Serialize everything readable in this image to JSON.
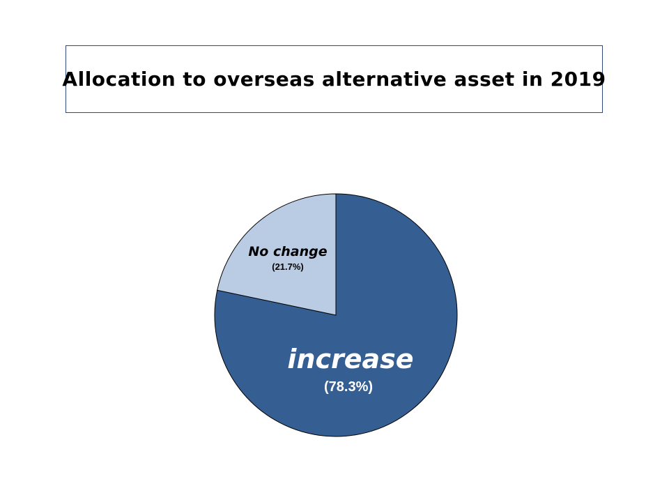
{
  "chart_data": {
    "type": "pie",
    "title": "Allocation to overseas alternative asset in 2019",
    "categories": [
      "increase",
      "No change"
    ],
    "values": [
      78.3,
      21.7
    ],
    "value_labels": [
      "(78.3%)",
      "(21.7%)"
    ],
    "colors": [
      "#355f93",
      "#b9cce4"
    ],
    "start_angle": "12 o'clock",
    "direction": "clockwise",
    "legend": "none"
  }
}
